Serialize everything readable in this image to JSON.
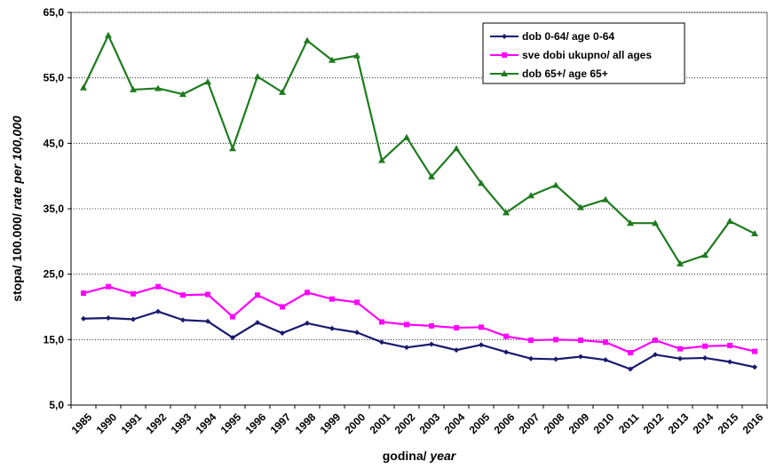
{
  "chart_data": {
    "type": "line",
    "xlabel_main": "godina/ ",
    "xlabel_italic": "year",
    "ylabel_main": "stopa/ 100.000/ ",
    "ylabel_italic": "rate per 100,000",
    "ylim": [
      5,
      65
    ],
    "yticks": [
      "5,0",
      "15,0",
      "25,0",
      "35,0",
      "45,0",
      "55,0",
      "65,0"
    ],
    "grid": "horizontal dashed",
    "legend_position": "top-right",
    "x": [
      1985,
      1990,
      1991,
      1992,
      1993,
      1994,
      1995,
      1996,
      1997,
      1998,
      1999,
      2000,
      2001,
      2002,
      2003,
      2004,
      2005,
      2006,
      2007,
      2008,
      2009,
      2010,
      2011,
      2012,
      2013,
      2014,
      2015,
      2016
    ],
    "series": [
      {
        "name": "dob 0-64/ age 0-64",
        "color": "#1a1a6e",
        "marker": "diamond",
        "values": [
          18.2,
          18.3,
          18.1,
          19.3,
          18.0,
          17.8,
          15.3,
          17.6,
          16.0,
          17.5,
          16.7,
          16.1,
          14.6,
          13.8,
          14.3,
          13.4,
          14.2,
          13.1,
          12.1,
          12.0,
          12.4,
          11.9,
          10.5,
          12.7,
          12.1,
          12.2,
          11.6,
          10.8
        ]
      },
      {
        "name": "sve dobi ukupno/ all ages",
        "color": "#ff00ff",
        "marker": "square",
        "values": [
          22.1,
          23.1,
          22.0,
          23.1,
          21.8,
          21.9,
          18.5,
          21.8,
          20.0,
          22.2,
          21.2,
          20.7,
          17.7,
          17.3,
          17.1,
          16.8,
          16.9,
          15.5,
          14.9,
          15.0,
          14.9,
          14.6,
          13.0,
          14.9,
          13.6,
          14.0,
          14.1,
          13.2
        ]
      },
      {
        "name": "dob 65+/ age 65+",
        "color": "#1e7b1e",
        "marker": "triangle",
        "values": [
          53.5,
          61.5,
          53.2,
          53.4,
          52.5,
          54.4,
          44.2,
          55.2,
          52.8,
          60.7,
          57.7,
          58.4,
          42.4,
          45.9,
          39.9,
          44.2,
          38.9,
          34.4,
          37.0,
          38.6,
          35.2,
          36.4,
          32.8,
          32.8,
          26.6,
          27.9,
          33.1,
          31.2
        ]
      }
    ]
  }
}
